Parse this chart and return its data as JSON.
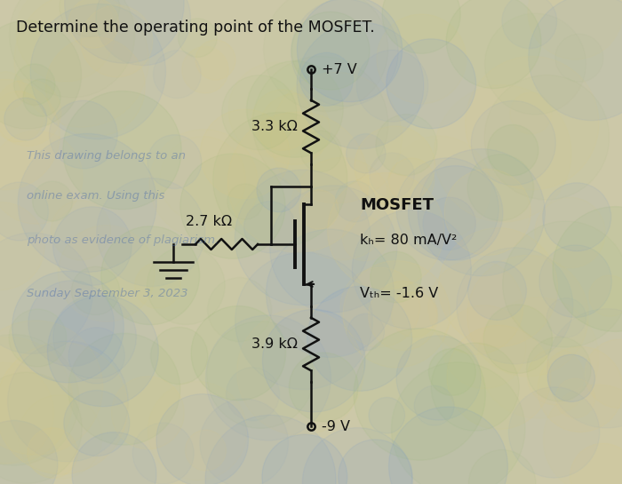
{
  "title": "Determine the operating point of the MOSFET.",
  "vdd_label": "+7 V",
  "vss_label": "-9 V",
  "r1_label": "3.3 kΩ",
  "r2_label": "2.7 kΩ",
  "r3_label": "3.9 kΩ",
  "mosfet_label": "MOSFET",
  "kp_label": "kₕ= 80 mA/V²",
  "vtp_label": "Vₜₕ= -1.6 V",
  "bg_color": "#ccc8a8",
  "line_color": "#111111",
  "text_color": "#111111",
  "watermark_lines": [
    "This drawing belongs to an",
    "online exam. Using this",
    "photo as evidence of plagiarism.",
    "Sunday September 3, 2023"
  ],
  "watermark_color": "#4466aa",
  "watermark_alpha": 0.4
}
